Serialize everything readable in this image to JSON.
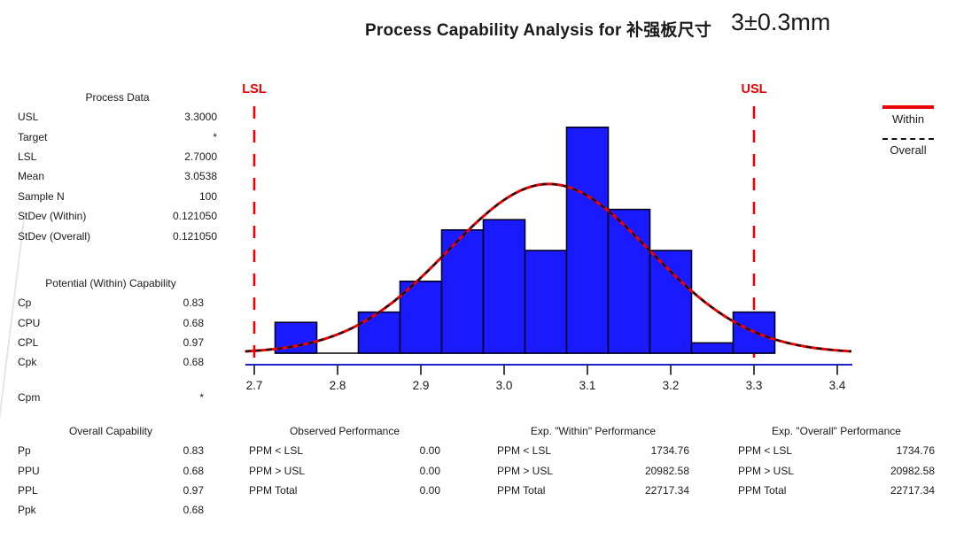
{
  "title": {
    "main": "Process Capability Analysis for 补强板尺寸",
    "spec": "3±0.3mm"
  },
  "legend": {
    "within_label": "Within",
    "overall_label": "Overall",
    "within_color": "#ee0000",
    "overall_color": "#111111"
  },
  "panels": {
    "process_data": {
      "header": "Process Data",
      "rows": [
        [
          "USL",
          "3.3000"
        ],
        [
          "Target",
          "*"
        ],
        [
          "LSL",
          "2.7000"
        ],
        [
          "Mean",
          "3.0538"
        ],
        [
          "Sample N",
          "100"
        ],
        [
          "StDev (Within)",
          "0.121050"
        ],
        [
          "StDev (Overall)",
          "0.121050"
        ]
      ]
    },
    "within_capability": {
      "header": "Potential (Within) Capability",
      "rows": [
        [
          "Cp",
          "0.83"
        ],
        [
          "CPU",
          "0.68"
        ],
        [
          "CPL",
          "0.97"
        ],
        [
          "Cpk",
          "0.68"
        ]
      ],
      "extra_rows": [
        [
          "Cpm",
          "*"
        ]
      ]
    },
    "overall_capability": {
      "header": "Overall Capability",
      "rows": [
        [
          "Pp",
          "0.83"
        ],
        [
          "PPU",
          "0.68"
        ],
        [
          "PPL",
          "0.97"
        ],
        [
          "Ppk",
          "0.68"
        ]
      ]
    },
    "observed_performance": {
      "header": "Observed Performance",
      "rows": [
        [
          "PPM < LSL",
          "0.00"
        ],
        [
          "PPM > USL",
          "0.00"
        ],
        [
          "PPM Total",
          "0.00"
        ]
      ]
    },
    "exp_within_performance": {
      "header": "Exp. \"Within\" Performance",
      "rows": [
        [
          "PPM < LSL",
          "1734.76"
        ],
        [
          "PPM > USL",
          "20982.58"
        ],
        [
          "PPM Total",
          "22717.34"
        ]
      ]
    },
    "exp_overall_performance": {
      "header": "Exp. \"Overall\" Performance",
      "rows": [
        [
          "PPM < LSL",
          "1734.76"
        ],
        [
          "PPM > USL",
          "20982.58"
        ],
        [
          "PPM Total",
          "22717.34"
        ]
      ]
    }
  },
  "chart_data": {
    "type": "bar",
    "subtype": "capability-histogram-with-normal-curves",
    "title": "Process Capability Analysis for 补强板尺寸 3±0.3mm",
    "xlabel": "",
    "ylabel": "",
    "bin_width": 0.05,
    "bin_centers": [
      2.75,
      2.8,
      2.85,
      2.9,
      2.95,
      3.0,
      3.05,
      3.1,
      3.15,
      3.2,
      3.25,
      3.3
    ],
    "frequencies": [
      3,
      0,
      4,
      7,
      12,
      13,
      10,
      22,
      14,
      10,
      1,
      4
    ],
    "sample_n": 100,
    "xticks": [
      "2.7",
      "2.8",
      "2.9",
      "3.0",
      "3.1",
      "3.2",
      "3.3",
      "3.4"
    ],
    "xlim": [
      2.689,
      3.418
    ],
    "ylim": [
      0,
      23
    ],
    "grid": false,
    "legend_position": "right",
    "spec_limits": {
      "lsl": 2.7,
      "usl": 3.3,
      "lsl_label": "LSL",
      "usl_label": "USL"
    },
    "curves": [
      {
        "name": "Within",
        "distribution": "normal",
        "mean": 3.0538,
        "stdev": 0.12105,
        "style": "solid",
        "color": "#ee0000"
      },
      {
        "name": "Overall",
        "distribution": "normal",
        "mean": 3.0538,
        "stdev": 0.12105,
        "style": "dashed",
        "color": "#111111"
      }
    ],
    "colors": {
      "bar_fill": "#1a1aff",
      "bar_stroke": "#000022",
      "axis_line": "#2222cc",
      "spec_line": "#ee0000",
      "tick_color": "#111111"
    }
  }
}
